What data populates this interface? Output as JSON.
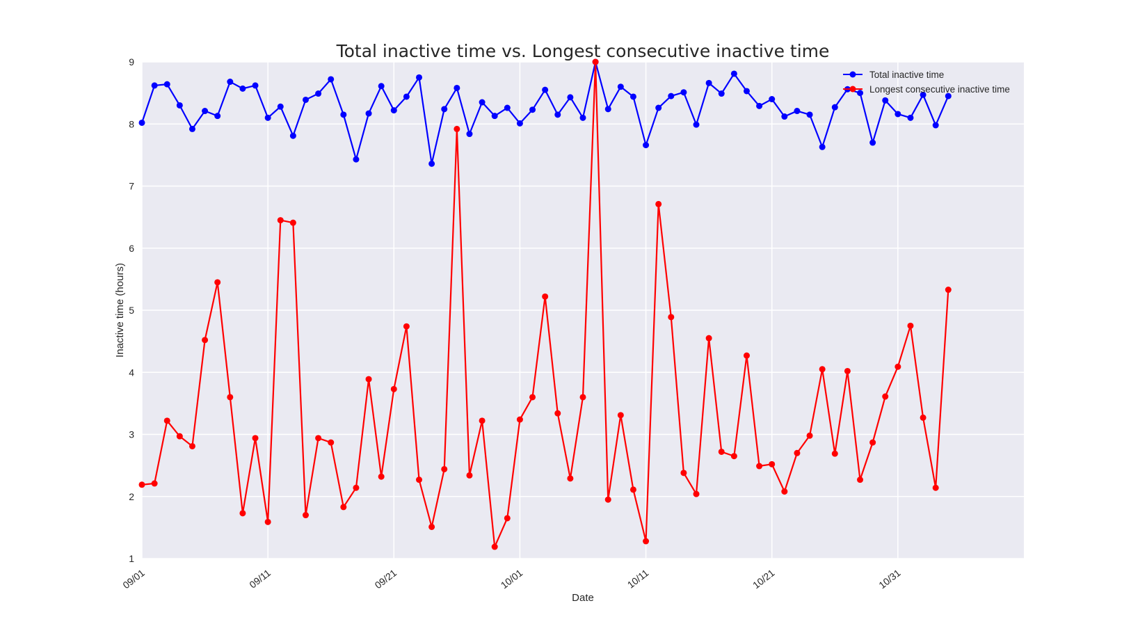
{
  "chart_data": {
    "type": "line",
    "title": "Total inactive time vs. Longest consecutive inactive time",
    "xlabel": "Date",
    "ylabel": "Inactive time (hours)",
    "ylim": [
      1,
      9
    ],
    "yticks": [
      "1",
      "2",
      "3",
      "4",
      "5",
      "6",
      "7",
      "8",
      "9"
    ],
    "xlim": [
      "2014-09-01",
      "2014-11-10"
    ],
    "xticks": [
      {
        "date": "2014-09-01",
        "label": "09/01"
      },
      {
        "date": "2014-09-11",
        "label": "09/11"
      },
      {
        "date": "2014-09-21",
        "label": "09/21"
      },
      {
        "date": "2014-10-01",
        "label": "10/01"
      },
      {
        "date": "2014-10-11",
        "label": "10/11"
      },
      {
        "date": "2014-10-21",
        "label": "10/21"
      },
      {
        "date": "2014-10-31",
        "label": "10/31"
      }
    ],
    "grid": true,
    "legend_position": "top-right",
    "x": [
      "2014-09-01",
      "2014-09-02",
      "2014-09-03",
      "2014-09-04",
      "2014-09-05",
      "2014-09-06",
      "2014-09-07",
      "2014-09-08",
      "2014-09-09",
      "2014-09-10",
      "2014-09-11",
      "2014-09-12",
      "2014-09-13",
      "2014-09-14",
      "2014-09-15",
      "2014-09-16",
      "2014-09-17",
      "2014-09-18",
      "2014-09-19",
      "2014-09-20",
      "2014-09-21",
      "2014-09-22",
      "2014-09-23",
      "2014-09-24",
      "2014-09-25",
      "2014-09-26",
      "2014-09-27",
      "2014-09-28",
      "2014-09-29",
      "2014-09-30",
      "2014-10-01",
      "2014-10-02",
      "2014-10-03",
      "2014-10-04",
      "2014-10-05",
      "2014-10-06",
      "2014-10-07",
      "2014-10-08",
      "2014-10-09",
      "2014-10-10",
      "2014-10-11",
      "2014-10-12",
      "2014-10-13",
      "2014-10-14",
      "2014-10-15",
      "2014-10-16",
      "2014-10-17",
      "2014-10-18",
      "2014-10-19",
      "2014-10-20",
      "2014-10-21",
      "2014-10-22",
      "2014-10-23",
      "2014-10-24",
      "2014-10-25",
      "2014-10-26",
      "2014-10-27",
      "2014-10-28",
      "2014-10-29",
      "2014-10-30",
      "2014-10-31",
      "2014-11-01",
      "2014-11-02",
      "2014-11-03",
      "2014-11-04"
    ],
    "series": [
      {
        "name": "Total inactive time",
        "color": "#0000ff",
        "values": [
          8.02,
          8.62,
          8.64,
          8.3,
          7.92,
          8.21,
          8.13,
          8.68,
          8.57,
          8.62,
          8.1,
          8.28,
          7.81,
          8.39,
          8.49,
          8.72,
          8.15,
          7.43,
          8.17,
          8.61,
          8.22,
          8.44,
          8.75,
          7.36,
          8.24,
          8.58,
          7.84,
          8.35,
          8.13,
          8.26,
          8.01,
          8.23,
          8.55,
          8.15,
          8.43,
          8.1,
          9.0,
          8.24,
          8.6,
          8.44,
          7.66,
          8.26,
          8.45,
          8.51,
          7.99,
          8.66,
          8.49,
          8.81,
          8.53,
          8.29,
          8.4,
          8.12,
          8.21,
          8.15,
          7.63,
          8.27,
          8.56,
          8.5,
          7.7,
          8.38,
          8.16,
          8.1,
          8.47,
          7.98,
          8.45
        ]
      },
      {
        "name": "Longest consecutive inactive time",
        "color": "#ff0000",
        "values": [
          2.19,
          2.21,
          3.22,
          2.97,
          2.81,
          4.52,
          5.45,
          3.6,
          1.73,
          2.94,
          1.59,
          6.45,
          6.41,
          1.7,
          2.94,
          2.87,
          1.83,
          2.14,
          3.89,
          2.32,
          3.73,
          4.74,
          2.27,
          1.51,
          2.44,
          7.92,
          2.34,
          3.22,
          1.19,
          1.65,
          3.24,
          3.6,
          5.22,
          3.34,
          2.29,
          3.6,
          9.0,
          1.95,
          3.31,
          2.11,
          1.28,
          6.71,
          4.89,
          2.38,
          2.04,
          4.55,
          2.72,
          2.65,
          4.27,
          2.49,
          2.52,
          2.08,
          2.7,
          2.98,
          4.05,
          2.69,
          4.02,
          2.27,
          2.87,
          3.61,
          4.09,
          4.75,
          3.27,
          2.14,
          5.33
        ]
      }
    ]
  }
}
